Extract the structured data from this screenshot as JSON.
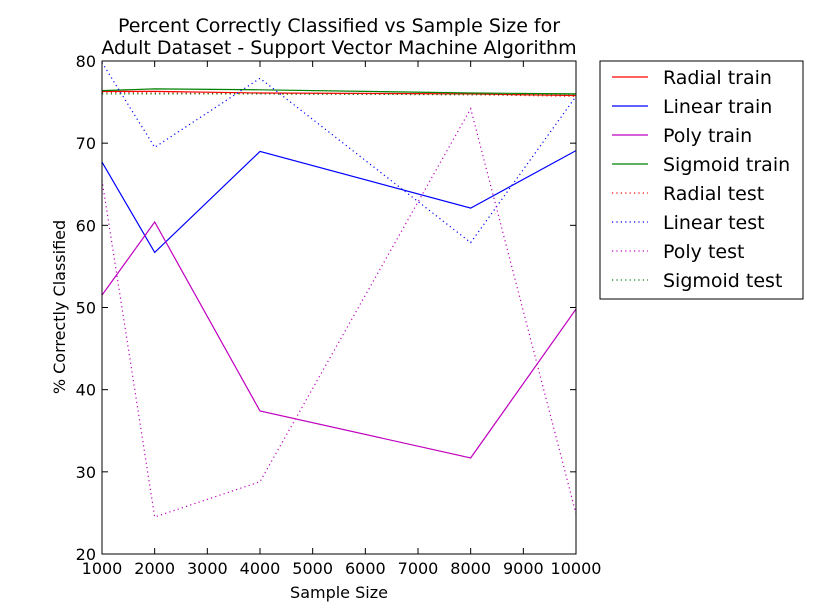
{
  "chart_data": {
    "type": "line",
    "title_line1": "Percent Correctly Classified vs Sample Size for",
    "title_line2": "Adult Dataset - Support Vector Machine Algorithm",
    "xlabel": "Sample Size",
    "ylabel": "% Correctly Classified",
    "xlim": [
      1000,
      10000
    ],
    "ylim": [
      20,
      80
    ],
    "xticks": [
      1000,
      2000,
      3000,
      4000,
      5000,
      6000,
      7000,
      8000,
      9000,
      10000
    ],
    "yticks": [
      20,
      30,
      40,
      50,
      60,
      70,
      80
    ],
    "grid": false,
    "legend_position": "outside-right",
    "x": [
      1000,
      2000,
      4000,
      8000,
      10000
    ],
    "series": [
      {
        "name": "Radial train",
        "color": "#ff0000",
        "style": "solid",
        "values": [
          76.3,
          76.3,
          76.1,
          76.0,
          75.8
        ]
      },
      {
        "name": "Linear train",
        "color": "#0000ff",
        "style": "solid",
        "values": [
          67.7,
          56.7,
          69.0,
          62.1,
          69.1
        ]
      },
      {
        "name": "Poly train",
        "color": "#bf00bf",
        "style": "solid",
        "values": [
          51.5,
          60.4,
          37.4,
          31.7,
          49.8
        ]
      },
      {
        "name": "Sigmoid train",
        "color": "#008000",
        "style": "solid",
        "values": [
          76.4,
          76.6,
          76.5,
          76.1,
          76.0
        ]
      },
      {
        "name": "Radial test",
        "color": "#ff0000",
        "style": "dotted",
        "values": [
          76.2,
          76.1,
          76.0,
          75.9,
          75.7
        ]
      },
      {
        "name": "Linear test",
        "color": "#0000ff",
        "style": "dotted",
        "values": [
          79.8,
          69.5,
          77.9,
          57.9,
          75.7
        ]
      },
      {
        "name": "Poly test",
        "color": "#bf00bf",
        "style": "dotted",
        "values": [
          65.5,
          24.5,
          28.8,
          74.2,
          24.9
        ]
      },
      {
        "name": "Sigmoid test",
        "color": "#008000",
        "style": "dotted",
        "values": [
          76.0,
          76.0,
          76.0,
          75.9,
          75.9
        ]
      }
    ]
  }
}
